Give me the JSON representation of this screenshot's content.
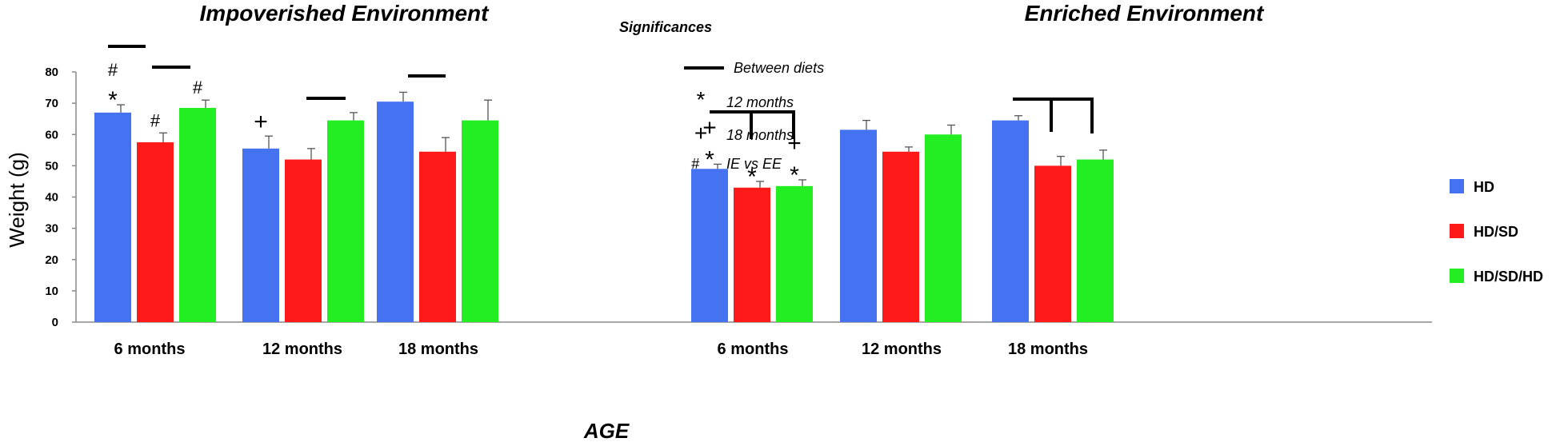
{
  "chart_data": {
    "type": "bar",
    "ylabel": "Weight (g)",
    "xlabel": "AGE",
    "ylim": [
      0,
      80
    ],
    "yticks": [
      0,
      10,
      20,
      30,
      40,
      50,
      60,
      70,
      80
    ],
    "series_names": [
      "HD",
      "HD/SD",
      "HD/SD/HD"
    ],
    "colors": {
      "HD": "#4472F0",
      "HD/SD": "#FF1A1A",
      "HD/SD/HD": "#22EE22"
    },
    "panels": [
      {
        "title": "Impoverished Environment",
        "categories": [
          "6 months",
          "12 months",
          "18 months"
        ],
        "series": [
          {
            "name": "HD",
            "values": [
              67,
              55.5,
              70.5
            ],
            "errors": [
              2.5,
              4,
              3
            ]
          },
          {
            "name": "HD/SD",
            "values": [
              57.5,
              52,
              54.5
            ],
            "errors": [
              3,
              3.5,
              4.5
            ]
          },
          {
            "name": "HD/SD/HD",
            "values": [
              68.5,
              64.5,
              64.5
            ],
            "errors": [
              2.5,
              2.5,
              6.5
            ]
          }
        ]
      },
      {
        "title": "Enriched Environment",
        "categories": [
          "6 months",
          "12 months",
          "18 months"
        ],
        "series": [
          {
            "name": "HD",
            "values": [
              49,
              61.5,
              64.5
            ],
            "errors": [
              1.5,
              3,
              1.5
            ]
          },
          {
            "name": "HD/SD",
            "values": [
              43,
              54.5,
              50
            ],
            "errors": [
              2,
              1.5,
              3
            ]
          },
          {
            "name": "HD/SD/HD",
            "values": [
              43.5,
              60,
              52
            ],
            "errors": [
              2,
              3,
              3
            ]
          }
        ]
      }
    ],
    "significance_legend": {
      "title": "Significances",
      "items": [
        {
          "symbol": "line",
          "label": "Between diets"
        },
        {
          "symbol": "*",
          "label": "12 months"
        },
        {
          "symbol": "+",
          "label": "18 months"
        },
        {
          "symbol": "#",
          "label": "IE vs EE"
        }
      ]
    },
    "bar_markers": [
      {
        "panel": 0,
        "category": 0,
        "series": 0,
        "symbols": [
          "#",
          "*"
        ]
      },
      {
        "panel": 0,
        "category": 0,
        "series": 1,
        "symbols": [
          "#"
        ]
      },
      {
        "panel": 0,
        "category": 0,
        "series": 2,
        "symbols": [
          "#"
        ]
      },
      {
        "panel": 0,
        "category": 1,
        "series": 0,
        "symbols": [
          "+"
        ]
      },
      {
        "panel": 1,
        "category": 0,
        "series": 0,
        "symbols": [
          "+",
          "*"
        ]
      },
      {
        "panel": 1,
        "category": 0,
        "series": 1,
        "symbols": [
          "*"
        ]
      },
      {
        "panel": 1,
        "category": 0,
        "series": 2,
        "symbols": [
          "+",
          "*"
        ]
      }
    ]
  }
}
